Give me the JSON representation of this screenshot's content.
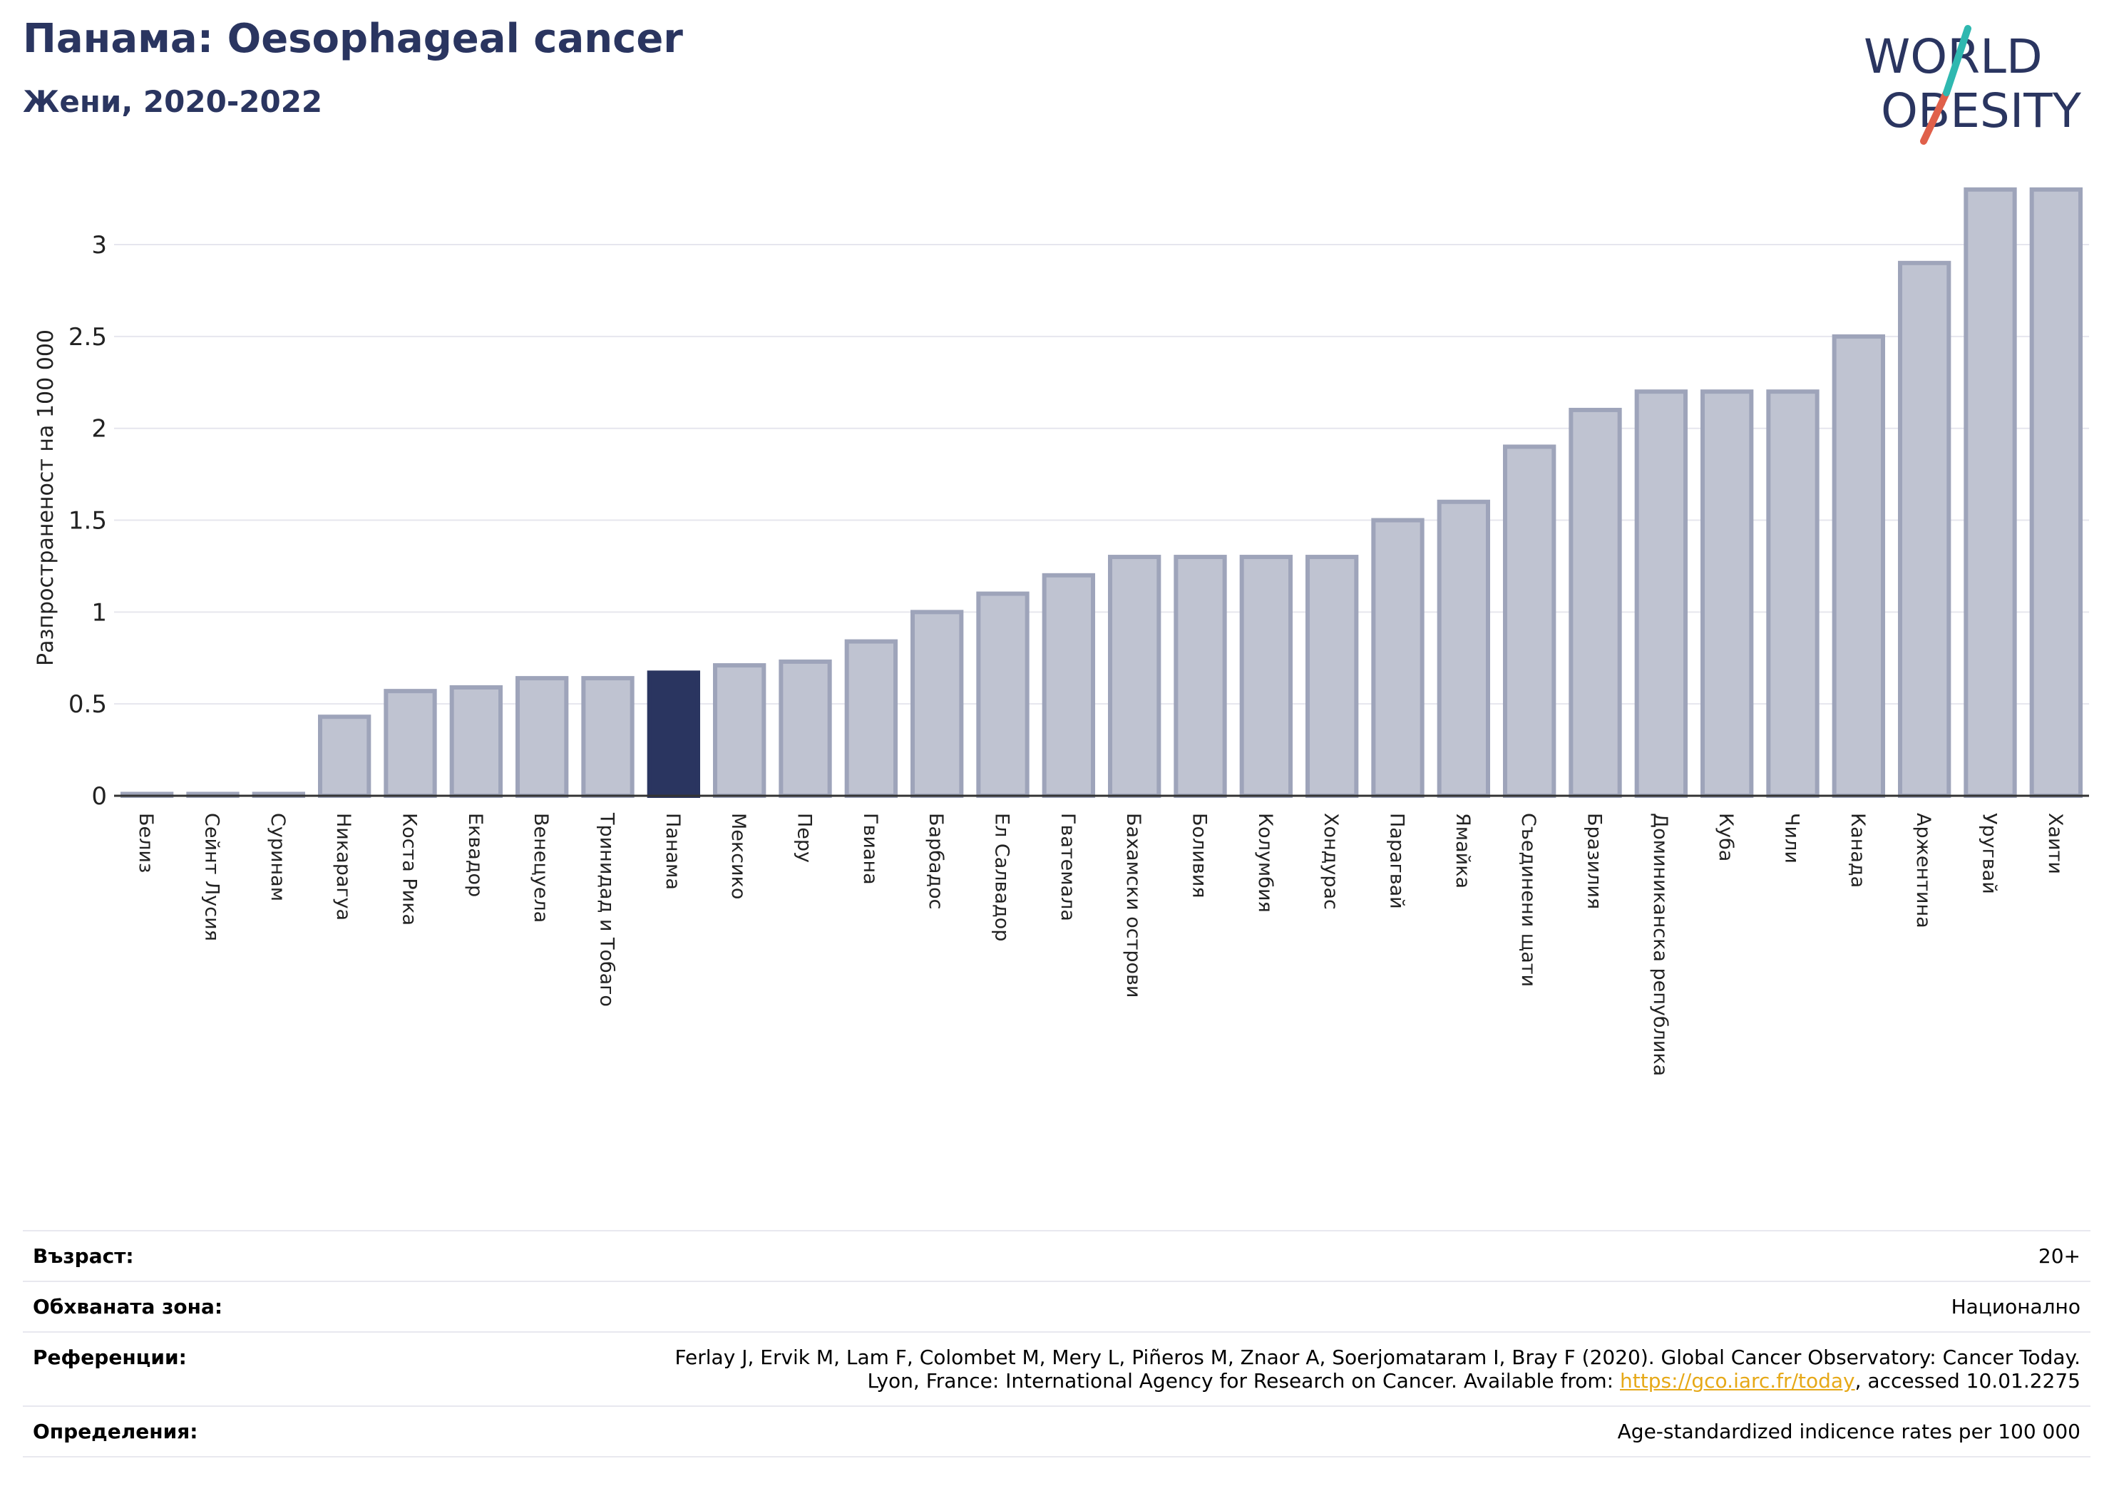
{
  "header": {
    "title": "Панама: Oesophageal cancer",
    "subtitle": "Жени, 2020-2022"
  },
  "logo": {
    "line1": "WORLD",
    "line2": "OBESITY",
    "accent_teal": "#2fb8b0",
    "accent_red": "#e0604a",
    "text_color": "#2a3560"
  },
  "colors": {
    "bar_default": "#bfc3d1",
    "bar_default_stroke": "#9ea4ba",
    "bar_highlight": "#2a3560",
    "grid": "#e6e6ee"
  },
  "chart_data": {
    "type": "bar",
    "ylabel": "Разпространеност  на 100 000",
    "ylim": [
      0,
      3.4
    ],
    "yticks": [
      0,
      0.5,
      1,
      1.5,
      2,
      2.5,
      3
    ],
    "ytick_labels": [
      "0",
      "0.5",
      "1",
      "1.5",
      "2",
      "2.5",
      "3"
    ],
    "grid": true,
    "highlight": "Панама",
    "categories": [
      "Белиз",
      "Сейнт Лусия",
      "Суринам",
      "Никарагуа",
      "Коста Рика",
      "Еквадор",
      "Венецуела",
      "Тринидад и Тобаго",
      "Панама",
      "Мексико",
      "Перу",
      "Гвиана",
      "Барбадос",
      "Ел Салвадор",
      "Гватемала",
      "Бахамски острови",
      "Боливия",
      "Колумбия",
      "Хондурас",
      "Парагвай",
      "Ямайка",
      "Съединени щати",
      "Бразилия",
      "Доминиканска република",
      "Куба",
      "Чили",
      "Канада",
      "Аржентина",
      "Уругвай",
      "Хаити"
    ],
    "values": [
      0.01,
      0.01,
      0.01,
      0.43,
      0.57,
      0.59,
      0.64,
      0.64,
      0.67,
      0.71,
      0.73,
      0.84,
      1.0,
      1.1,
      1.2,
      1.3,
      1.3,
      1.3,
      1.3,
      1.5,
      1.6,
      1.9,
      2.1,
      2.2,
      2.2,
      2.2,
      2.5,
      2.9,
      3.3,
      3.3
    ]
  },
  "meta": {
    "age_label": "Възраст:",
    "age_value": "20+",
    "area_label": "Обхваната зона:",
    "area_value": "Национално",
    "refs_label": "Референции:",
    "refs_line1": "Ferlay J, Ervik M, Lam F, Colombet M, Mery L, Piñeros M, Znaor A, Soerjomataram I, Bray F (2020). Global Cancer Observatory: Cancer Today.",
    "refs_line2_pre": "Lyon, France: International Agency for Research on Cancer. Available from: ",
    "refs_link": "https://gco.iarc.fr/today",
    "refs_line2_post": ", accessed 10.01.2275",
    "defs_label": "Определения:",
    "defs_value": "Age-standardized indicence rates per 100 000"
  }
}
